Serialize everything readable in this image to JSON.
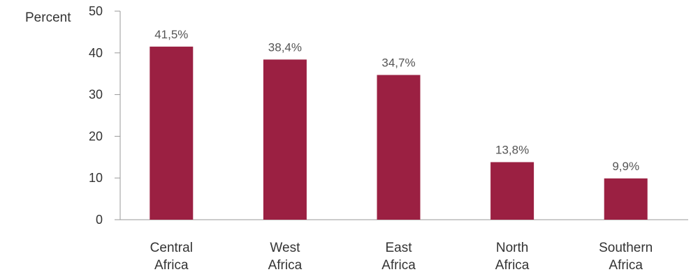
{
  "chart_data": {
    "type": "bar",
    "categories": [
      "Central Africa",
      "West Africa",
      "East Africa",
      "North Africa",
      "Southern Africa"
    ],
    "category_lines": [
      [
        "Central",
        "Africa"
      ],
      [
        "West",
        "Africa"
      ],
      [
        "East",
        "Africa"
      ],
      [
        "North",
        "Africa"
      ],
      [
        "Southern",
        "Africa"
      ]
    ],
    "values": [
      41.5,
      38.4,
      34.7,
      13.8,
      9.9
    ],
    "data_labels": [
      "41,5%",
      "38,4%",
      "34,7%",
      "13,8%",
      "9,9%"
    ],
    "ylabel": "Percent",
    "ylim": [
      0,
      50
    ],
    "yticks": [
      0,
      10,
      20,
      30,
      40,
      50
    ],
    "grid": false,
    "bar_color": "#9b2042",
    "axis_color": "#999999"
  }
}
